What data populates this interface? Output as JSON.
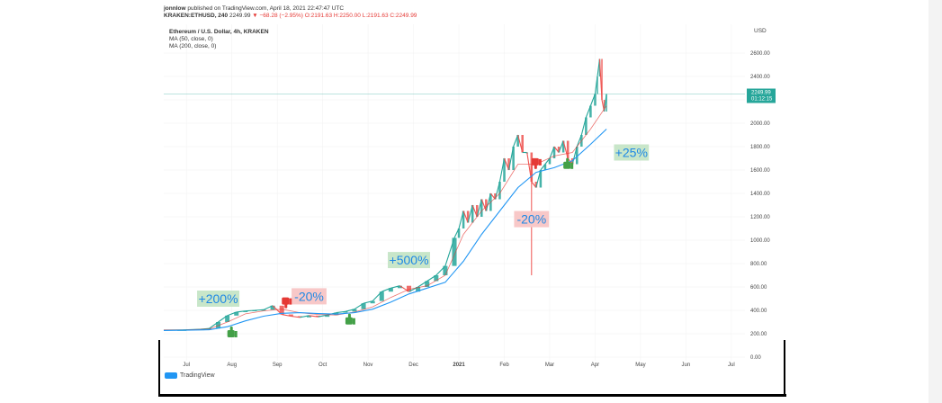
{
  "header": {
    "line1_author": "jonnlow",
    "line1_rest": " published on TradingView.com, April 18, 2021 22:47:47 UTC",
    "line2_symbol": "KRAKEN:ETHUSD, 240",
    "line2_price": " 2249.99 ",
    "line2_change": "▼ −68.28 (−2.95%)",
    "line2_ohlc": " O:2191.63 H:2250.00 L:2191.63 C:2249.99"
  },
  "legend": {
    "title": "Ethereum / U.S. Dollar, 4h, KRAKEN",
    "ma50": "MA (50, close, 0)",
    "ma200": "MA (200, close, 0)"
  },
  "axis": {
    "currency": "USD",
    "price_label": "2249.99",
    "countdown": "01:12:15"
  },
  "branding": {
    "logo_text": "TradingView"
  },
  "colors": {
    "up": "#26a69a",
    "down": "#ef5350",
    "ma50": "#e53935",
    "ma200": "#2196f3",
    "price_line": "#26a69a",
    "gain_box": "#c8e6c9",
    "gain_text": "#1e88e5",
    "loss_box": "#f8c8c8",
    "loss_text": "#1e88e5",
    "thumb_up": "#43a047",
    "thumb_down": "#e53935"
  },
  "chart_data": {
    "type": "line",
    "title": "Ethereum / U.S. Dollar, 4h, KRAKEN",
    "y_axis_position": "right",
    "ylim": [
      0,
      2700
    ],
    "y_ticks": [
      "0.00",
      "200.00",
      "400.00",
      "600.00",
      "800.00",
      "1000.00",
      "1200.00",
      "1400.00",
      "1600.00",
      "1800.00",
      "2000.00",
      "2200.00",
      "2400.00",
      "2600.00"
    ],
    "x_ticks": [
      {
        "label": "Jul",
        "t": 0.5
      },
      {
        "label": "Aug",
        "t": 1.5
      },
      {
        "label": "Sep",
        "t": 2.5
      },
      {
        "label": "Oct",
        "t": 3.5
      },
      {
        "label": "Nov",
        "t": 4.5
      },
      {
        "label": "Dec",
        "t": 5.5
      },
      {
        "label": "2021",
        "t": 6.5
      },
      {
        "label": "Feb",
        "t": 7.5
      },
      {
        "label": "Mar",
        "t": 8.5
      },
      {
        "label": "Apr",
        "t": 9.5
      },
      {
        "label": "May",
        "t": 10.5
      },
      {
        "label": "Jun",
        "t": 11.5
      },
      {
        "label": "Jul",
        "t": 12.5
      }
    ],
    "xlim": [
      0,
      12.8
    ],
    "last_price": 2249.99,
    "series": [
      {
        "name": "ETHUSD",
        "style": "candles",
        "x": [
          0.0,
          0.4,
          0.8,
          1.0,
          1.2,
          1.4,
          1.6,
          1.8,
          2.0,
          2.2,
          2.4,
          2.6,
          2.8,
          3.0,
          3.2,
          3.4,
          3.6,
          3.8,
          4.0,
          4.2,
          4.4,
          4.6,
          4.8,
          5.0,
          5.2,
          5.4,
          5.6,
          5.8,
          6.0,
          6.2,
          6.4,
          6.5,
          6.6,
          6.7,
          6.8,
          6.9,
          7.0,
          7.1,
          7.2,
          7.3,
          7.4,
          7.5,
          7.6,
          7.7,
          7.8,
          7.9,
          8.0,
          8.1,
          8.2,
          8.3,
          8.4,
          8.5,
          8.6,
          8.7,
          8.8,
          8.9,
          9.0,
          9.1,
          9.2,
          9.3,
          9.4,
          9.5,
          9.55,
          9.6,
          9.65,
          9.7,
          9.75
        ],
        "y": [
          230,
          232,
          238,
          245,
          300,
          355,
          385,
          395,
          400,
          405,
          440,
          365,
          350,
          340,
          355,
          345,
          360,
          380,
          390,
          410,
          460,
          480,
          560,
          590,
          610,
          560,
          600,
          650,
          700,
          780,
          1020,
          1100,
          1250,
          1150,
          1300,
          1200,
          1350,
          1250,
          1400,
          1350,
          1500,
          1700,
          1600,
          1800,
          1900,
          1750,
          1750,
          1500,
          1450,
          1600,
          1650,
          1700,
          1800,
          1750,
          1850,
          1700,
          1650,
          1800,
          1900,
          2050,
          2150,
          2250,
          2400,
          2550,
          2200,
          2100,
          2250
        ]
      },
      {
        "name": "MA (50, close, 0)",
        "style": "line",
        "x": [
          0.0,
          0.5,
          1.0,
          1.4,
          1.8,
          2.2,
          2.6,
          3.0,
          3.4,
          3.8,
          4.2,
          4.6,
          5.0,
          5.4,
          5.8,
          6.2,
          6.6,
          7.0,
          7.4,
          7.8,
          8.2,
          8.6,
          9.0,
          9.4,
          9.75
        ],
        "y": [
          232,
          234,
          240,
          300,
          370,
          395,
          410,
          380,
          365,
          360,
          385,
          430,
          510,
          580,
          610,
          700,
          1050,
          1250,
          1400,
          1650,
          1650,
          1720,
          1750,
          1950,
          2150
        ]
      },
      {
        "name": "MA (200, close, 0)",
        "style": "line",
        "x": [
          0.0,
          0.5,
          1.0,
          1.4,
          1.8,
          2.2,
          2.6,
          3.0,
          3.4,
          3.8,
          4.2,
          4.6,
          5.0,
          5.4,
          5.8,
          6.2,
          6.6,
          7.0,
          7.4,
          7.8,
          8.2,
          8.6,
          9.0,
          9.4,
          9.75
        ],
        "y": [
          228,
          230,
          234,
          260,
          310,
          350,
          375,
          380,
          372,
          368,
          380,
          410,
          470,
          540,
          590,
          640,
          820,
          1050,
          1250,
          1450,
          1580,
          1620,
          1680,
          1820,
          1950
        ]
      }
    ],
    "annotations": [
      {
        "text": "+200%",
        "kind": "gain",
        "x": 1.2,
        "y": 500
      },
      {
        "text": "-20%",
        "kind": "loss",
        "x": 3.2,
        "y": 520
      },
      {
        "text": "+500%",
        "kind": "gain",
        "x": 5.4,
        "y": 830
      },
      {
        "text": "-20%",
        "kind": "loss",
        "x": 8.1,
        "y": 1180
      },
      {
        "text": "+25%",
        "kind": "gain",
        "x": 10.3,
        "y": 1750
      }
    ],
    "markers": [
      {
        "kind": "up",
        "x": 1.5,
        "y": 200
      },
      {
        "kind": "down",
        "x": 2.7,
        "y": 480
      },
      {
        "kind": "up",
        "x": 4.1,
        "y": 310
      },
      {
        "kind": "down",
        "x": 8.2,
        "y": 1670
      },
      {
        "kind": "up",
        "x": 8.9,
        "y": 1640
      }
    ]
  }
}
